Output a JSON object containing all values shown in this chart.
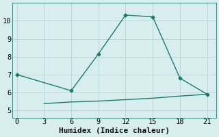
{
  "xlabel": "Humidex (Indice chaleur)",
  "background_color": "#d8eeee",
  "line_color": "#1a7a6e",
  "grid_color": "#b8d8d8",
  "line1_x": [
    0,
    6,
    9,
    12,
    15,
    18,
    21
  ],
  "line1_y": [
    7.0,
    6.1,
    8.15,
    10.32,
    10.22,
    6.8,
    5.9
  ],
  "line2_x": [
    3,
    6,
    9,
    12,
    15,
    18,
    21
  ],
  "line2_y": [
    5.38,
    5.47,
    5.52,
    5.6,
    5.68,
    5.8,
    5.9
  ],
  "xlim": [
    -0.5,
    22
  ],
  "ylim": [
    4.6,
    11.0
  ],
  "xticks": [
    0,
    3,
    6,
    9,
    12,
    15,
    18,
    21
  ],
  "yticks": [
    5,
    6,
    7,
    8,
    9,
    10
  ],
  "marker": "D",
  "markersize": 2.5,
  "linewidth": 1.0,
  "font_family": "monospace",
  "xlabel_fontsize": 8,
  "tick_fontsize": 7.5
}
